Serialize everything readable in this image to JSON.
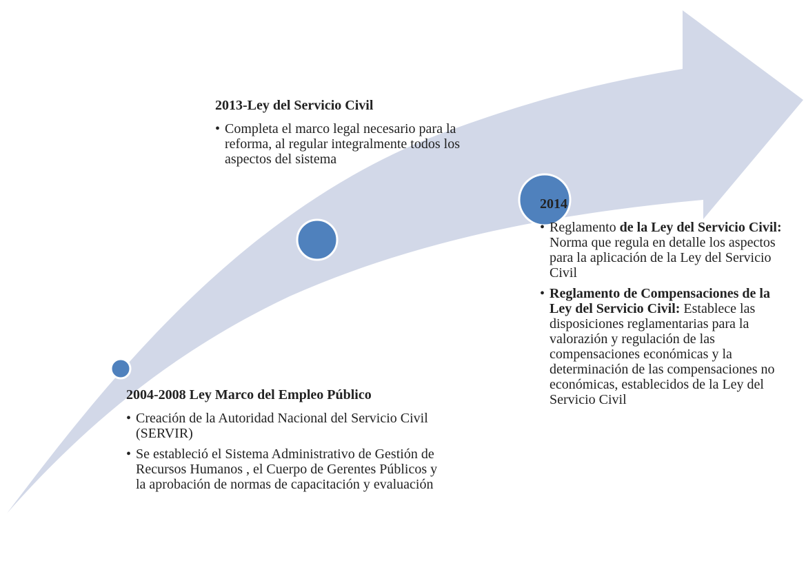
{
  "milestones": [
    {
      "title": "2004-2008 Ley Marco del Empleo Público",
      "bullets": [
        [
          {
            "text": "Creación de la Autoridad Nacional del Servicio Civil (SERVIR)",
            "bold": false
          }
        ],
        [
          {
            "text": "Se estableció el Sistema Administrativo de Gestión de Recursos Humanos , el Cuerpo de Gerentes Públicos y la aprobación de normas de capacitación y evaluación",
            "bold": false
          }
        ]
      ]
    },
    {
      "title": "2013-Ley del Servicio Civil",
      "bullets": [
        [
          {
            "text": "Completa el marco legal necesario para la reforma, al regular integralmente todos los aspectos del sistema",
            "bold": false
          }
        ]
      ]
    },
    {
      "title": "2014",
      "bullets": [
        [
          {
            "text": " Reglamento ",
            "bold": false
          },
          {
            "text": "de la Ley del Servicio Civil:",
            "bold": true
          },
          {
            "text": " Norma que regula en detalle los aspectos para la aplicación de la Ley del Servicio Civil",
            "bold": false
          }
        ],
        [
          {
            "text": "Reglamento de Compensaciones de la Ley del Servicio Civil:",
            "bold": true
          },
          {
            "text": " Establece las disposiciones reglamentarias para la valorazión y regulación de las compensaciones económicas y la determinación de las compensaciones no económicas, establecidos de la Ley del Servicio Civil",
            "bold": false
          }
        ]
      ]
    }
  ]
}
